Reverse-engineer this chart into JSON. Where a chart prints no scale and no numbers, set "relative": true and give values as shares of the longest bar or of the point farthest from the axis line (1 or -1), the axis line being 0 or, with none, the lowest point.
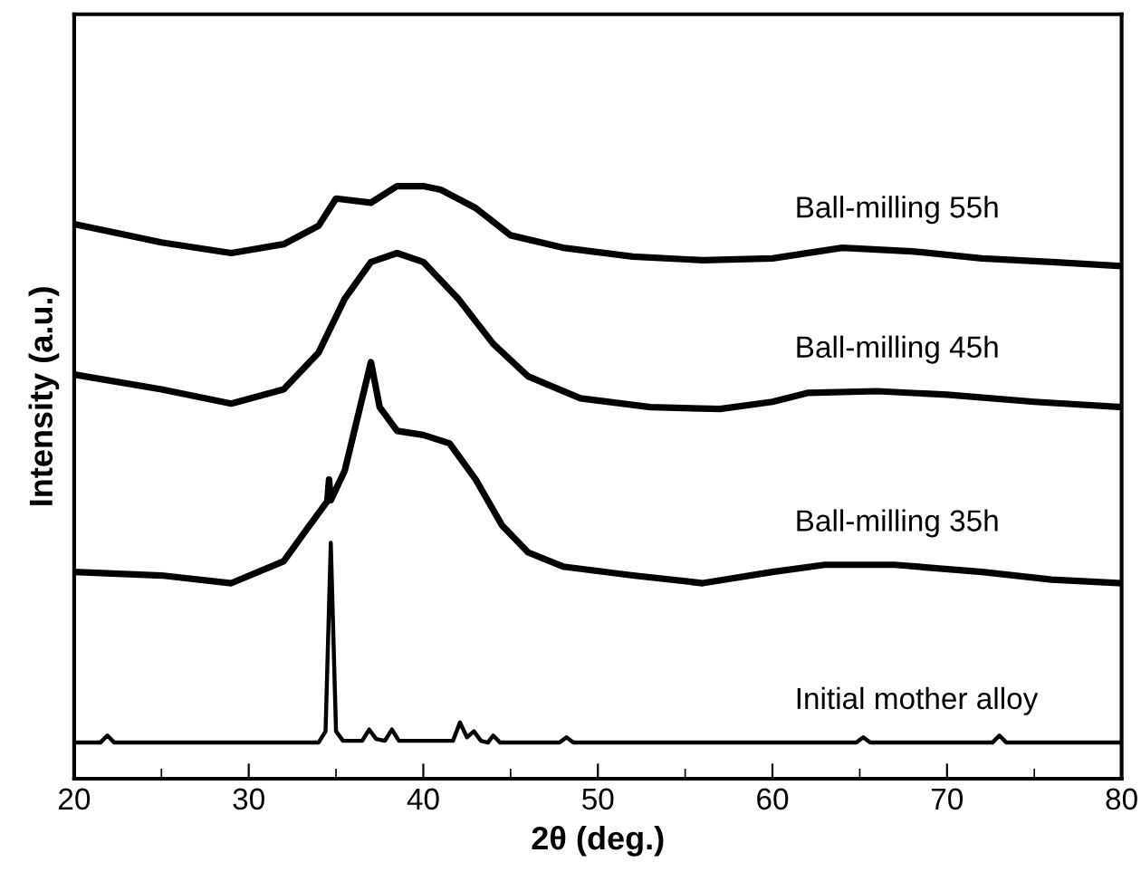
{
  "chart_data": {
    "type": "line",
    "relative": true,
    "xlabel": "2θ (deg.)",
    "ylabel": "Intensity (a.u.)",
    "xlim": [
      20,
      80
    ],
    "xticks": [
      20,
      {
        "value": 25,
        "label": null
      },
      30,
      {
        "value": 35,
        "label": null
      },
      40,
      {
        "value": 45,
        "label": null
      },
      50,
      {
        "value": 55,
        "label": null
      },
      60,
      {
        "value": 65,
        "label": null
      },
      70,
      {
        "value": 75,
        "label": null
      },
      80
    ],
    "grid": false,
    "legend": false,
    "marker": "none",
    "line_style": "solid",
    "series": [
      {
        "name": "Ball-milling 55h",
        "color": "#000000",
        "x": [
          20,
          25,
          29,
          32,
          34,
          35,
          37,
          38.5,
          40,
          41,
          43,
          45,
          48,
          52,
          56,
          60,
          64,
          68,
          72,
          76,
          80
        ],
        "values": [
          0.936,
          0.905,
          0.887,
          0.902,
          0.933,
          0.979,
          0.972,
          1.0,
          1.0,
          0.994,
          0.963,
          0.917,
          0.896,
          0.881,
          0.875,
          0.878,
          0.896,
          0.89,
          0.878,
          0.872,
          0.865
        ]
      },
      {
        "name": "Ball-milling 45h",
        "color": "#000000",
        "x": [
          20,
          25,
          29,
          32,
          34,
          35.5,
          37,
          38.5,
          40,
          42,
          44,
          46,
          49,
          53,
          57,
          60,
          62,
          66,
          70,
          75,
          80
        ],
        "values": [
          0.682,
          0.657,
          0.633,
          0.657,
          0.719,
          0.81,
          0.872,
          0.887,
          0.872,
          0.81,
          0.734,
          0.679,
          0.642,
          0.627,
          0.624,
          0.636,
          0.651,
          0.654,
          0.648,
          0.636,
          0.627
        ]
      },
      {
        "name": "Ball-milling 35h",
        "color": "#000000",
        "x": [
          20,
          25,
          29,
          32,
          33.5,
          34.5,
          34.6,
          34.7,
          35.5,
          36.5,
          37,
          37.5,
          38.5,
          40,
          41.5,
          43,
          44.5,
          46,
          48,
          52,
          56,
          60,
          63,
          67,
          72,
          76,
          80
        ],
        "values": [
          0.349,
          0.343,
          0.33,
          0.367,
          0.428,
          0.468,
          0.505,
          0.47,
          0.52,
          0.642,
          0.703,
          0.627,
          0.587,
          0.58,
          0.566,
          0.505,
          0.428,
          0.382,
          0.358,
          0.343,
          0.33,
          0.349,
          0.361,
          0.361,
          0.349,
          0.336,
          0.33
        ]
      },
      {
        "name": "Initial mother alloy",
        "color": "#000000",
        "x": [
          20,
          21.5,
          21.9,
          22.3,
          34,
          34.4,
          34.7,
          35.0,
          35.4,
          36.5,
          36.9,
          37.3,
          37.8,
          38.2,
          38.6,
          41.7,
          42.1,
          42.5,
          42.9,
          43.3,
          43.7,
          44,
          44.4,
          47.8,
          48.2,
          48.6,
          64.8,
          65.2,
          65.6,
          72.6,
          73,
          73.4,
          80
        ],
        "values": [
          0.061,
          0.061,
          0.073,
          0.061,
          0.061,
          0.08,
          0.398,
          0.08,
          0.064,
          0.064,
          0.083,
          0.067,
          0.064,
          0.083,
          0.064,
          0.064,
          0.095,
          0.07,
          0.08,
          0.064,
          0.061,
          0.073,
          0.061,
          0.061,
          0.07,
          0.061,
          0.061,
          0.07,
          0.061,
          0.061,
          0.073,
          0.061,
          0.061
        ]
      }
    ]
  }
}
